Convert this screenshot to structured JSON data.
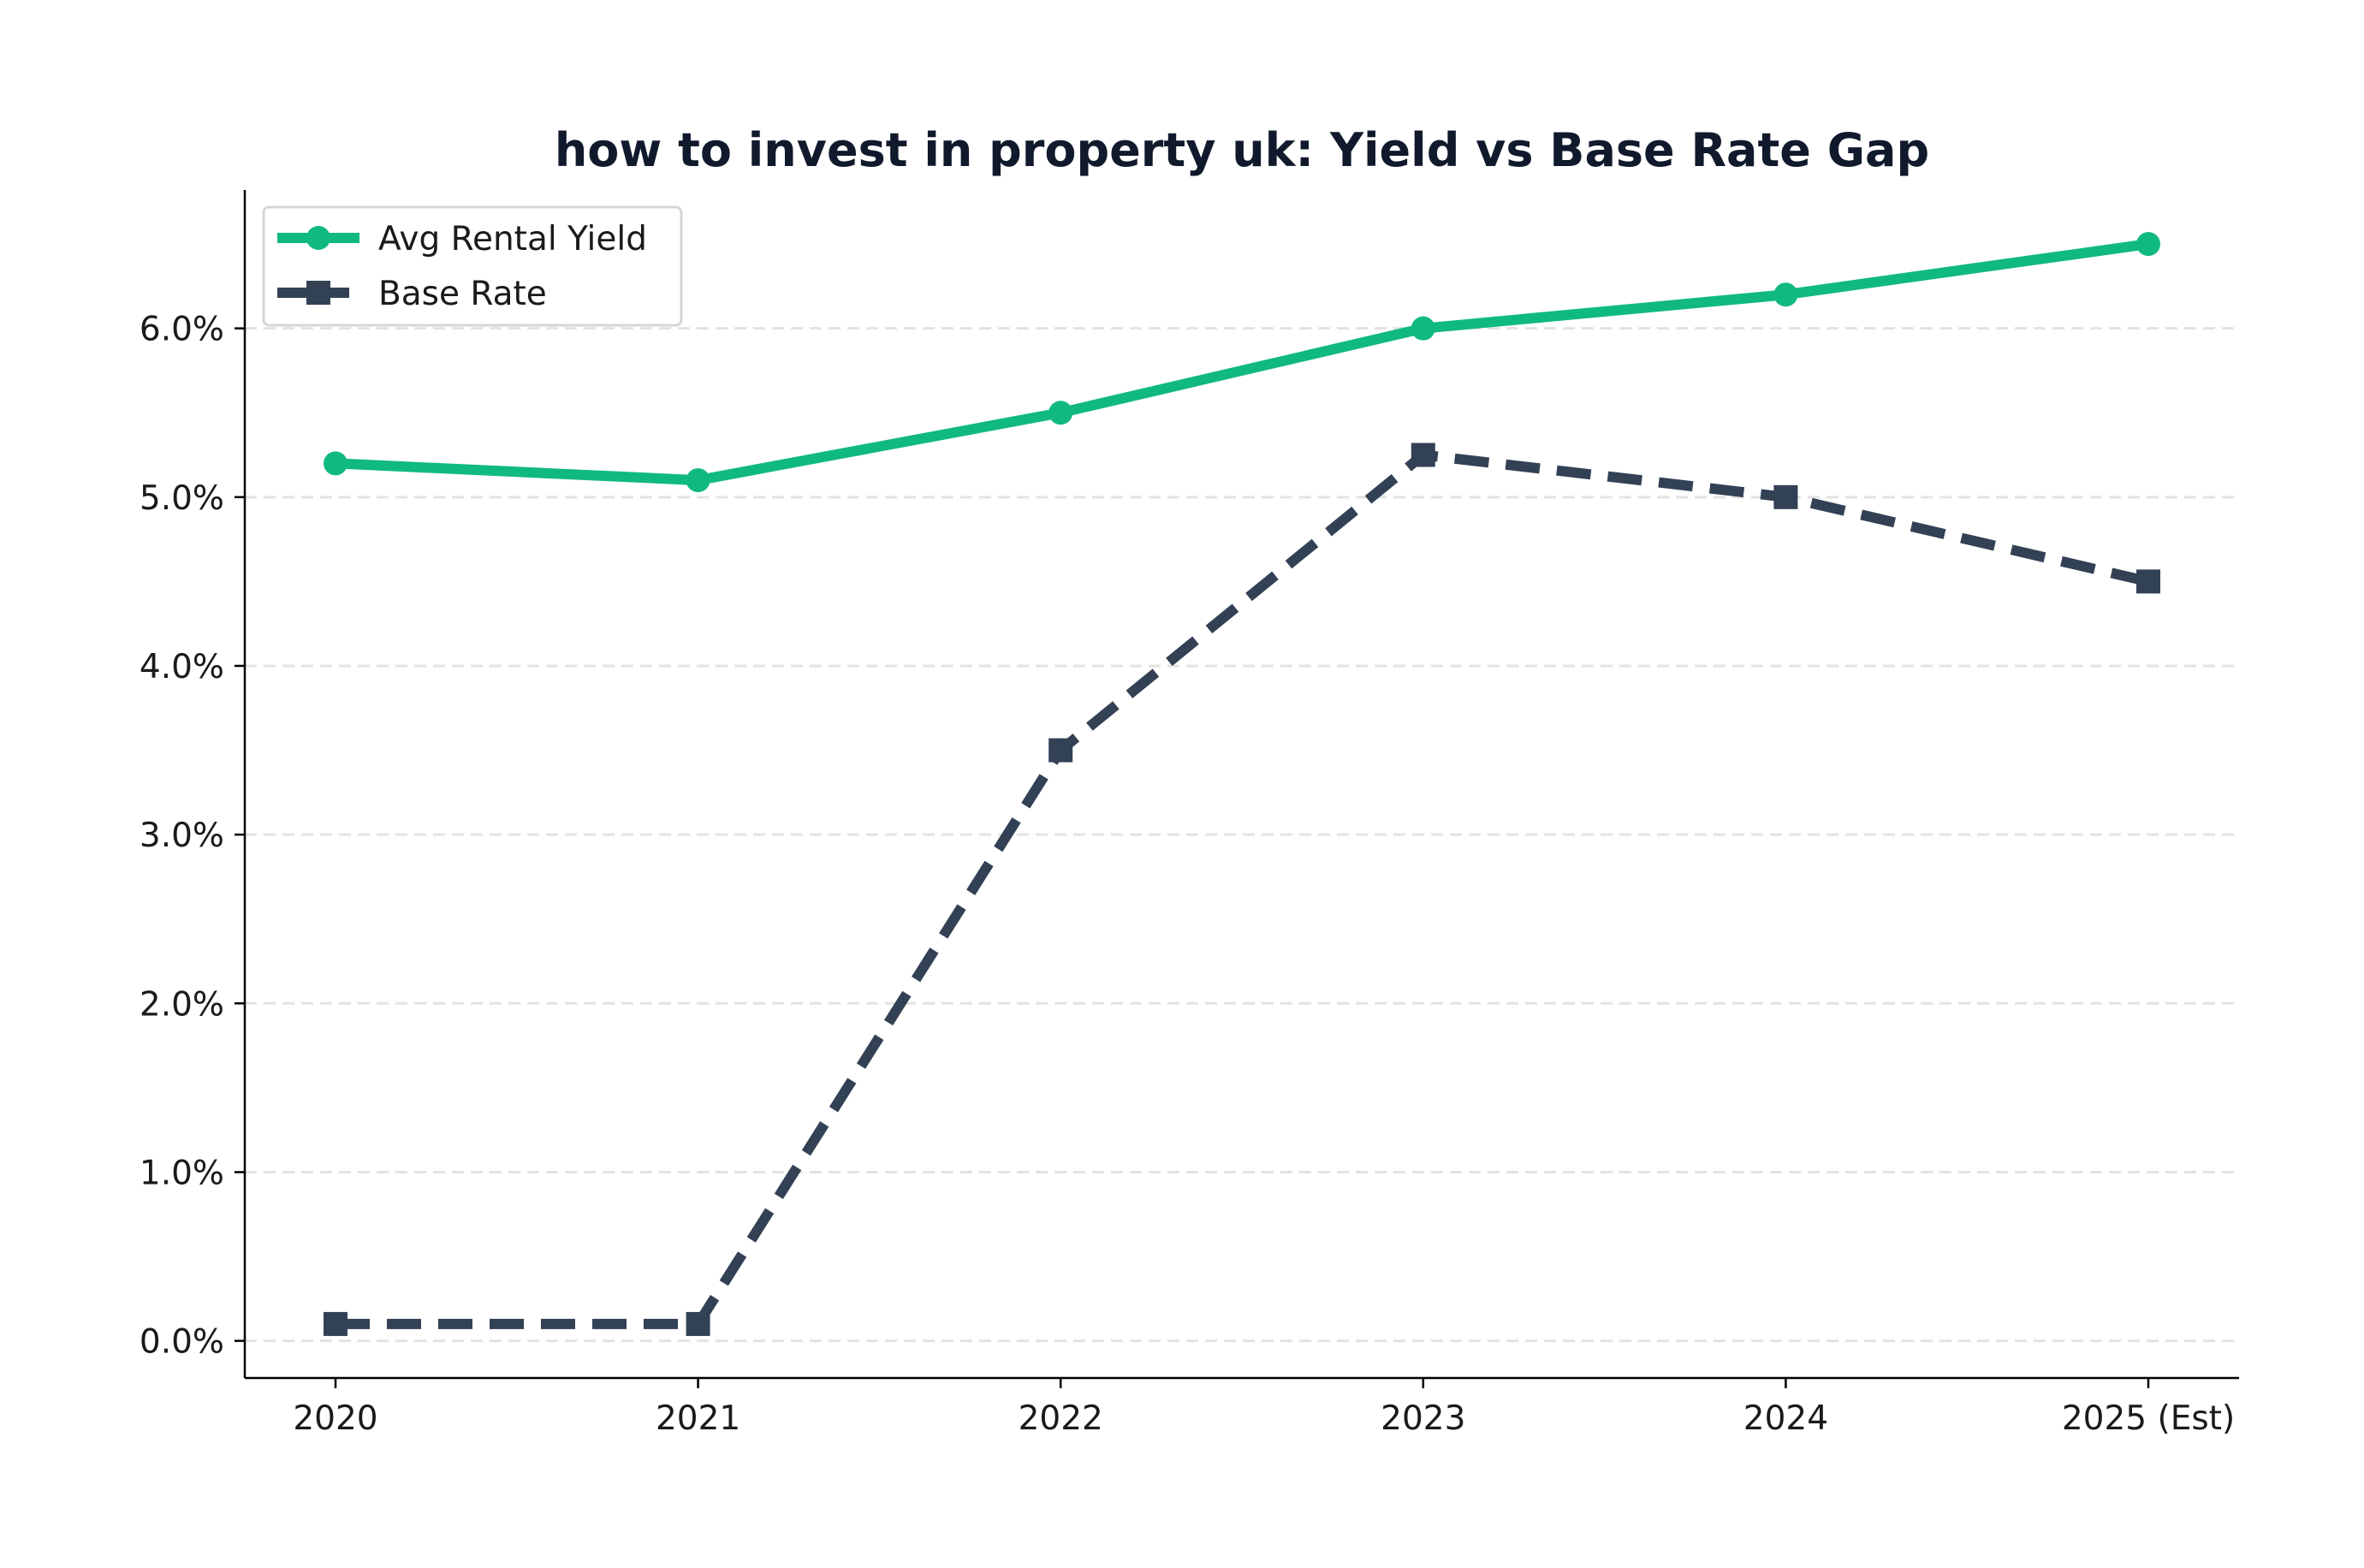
{
  "chart_data": {
    "type": "line",
    "title": "how to invest in property uk: Yield vs Base Rate Gap",
    "xlabel": "",
    "ylabel": "",
    "categories": [
      "2020",
      "2021",
      "2022",
      "2023",
      "2024",
      "2025 (Est)"
    ],
    "ylim": [
      -0.22,
      6.82
    ],
    "yticks": [
      0,
      1,
      2,
      3,
      4,
      5,
      6
    ],
    "ytick_labels": [
      "0.0%",
      "1.0%",
      "2.0%",
      "3.0%",
      "4.0%",
      "5.0%",
      "6.0%"
    ],
    "grid": "horizontal dashed",
    "legend_position": "top-left",
    "series": [
      {
        "name": "Avg Rental Yield",
        "values": [
          5.2,
          5.1,
          5.5,
          6.0,
          6.2,
          6.5
        ],
        "color": "#10b981",
        "line_style": "solid",
        "marker": "circle"
      },
      {
        "name": "Base Rate",
        "values": [
          0.1,
          0.1,
          3.5,
          5.25,
          5.0,
          4.5
        ],
        "color": "#334155",
        "line_style": "dashed",
        "marker": "square"
      }
    ]
  }
}
